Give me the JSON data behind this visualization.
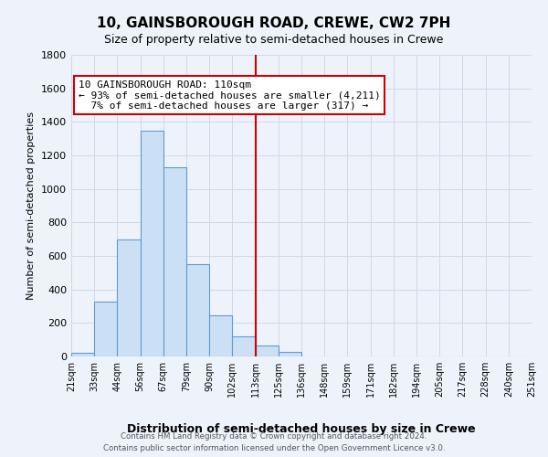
{
  "title": "10, GAINSBOROUGH ROAD, CREWE, CW2 7PH",
  "subtitle": "Size of property relative to semi-detached houses in Crewe",
  "xlabel": "Distribution of semi-detached houses by size in Crewe",
  "ylabel": "Number of semi-detached properties",
  "bin_labels": [
    "21sqm",
    "33sqm",
    "44sqm",
    "56sqm",
    "67sqm",
    "79sqm",
    "90sqm",
    "102sqm",
    "113sqm",
    "125sqm",
    "136sqm",
    "148sqm",
    "159sqm",
    "171sqm",
    "182sqm",
    "194sqm",
    "205sqm",
    "217sqm",
    "228sqm",
    "240sqm",
    "251sqm"
  ],
  "bar_heights": [
    20,
    330,
    700,
    1350,
    1130,
    550,
    245,
    120,
    65,
    25,
    0,
    0,
    0,
    0,
    0,
    0,
    0,
    0,
    0,
    0
  ],
  "n_bins": 20,
  "bar_color": "#cce0f5",
  "bar_edge_color": "#5b9bd5",
  "vline_bin": 8,
  "vline_color": "#cc0000",
  "pct_smaller": 93,
  "n_smaller": 4211,
  "pct_larger": 7,
  "n_larger": 317,
  "property_sqm": 110,
  "ylim": [
    0,
    1800
  ],
  "yticks": [
    0,
    200,
    400,
    600,
    800,
    1000,
    1200,
    1400,
    1600,
    1800
  ],
  "annotation_box_color": "#ffffff",
  "annotation_box_edge": "#cc0000",
  "grid_color": "#d0d8e8",
  "bg_color": "#eef3fb",
  "footer_line1": "Contains HM Land Registry data © Crown copyright and database right 2024.",
  "footer_line2": "Contains public sector information licensed under the Open Government Licence v3.0."
}
